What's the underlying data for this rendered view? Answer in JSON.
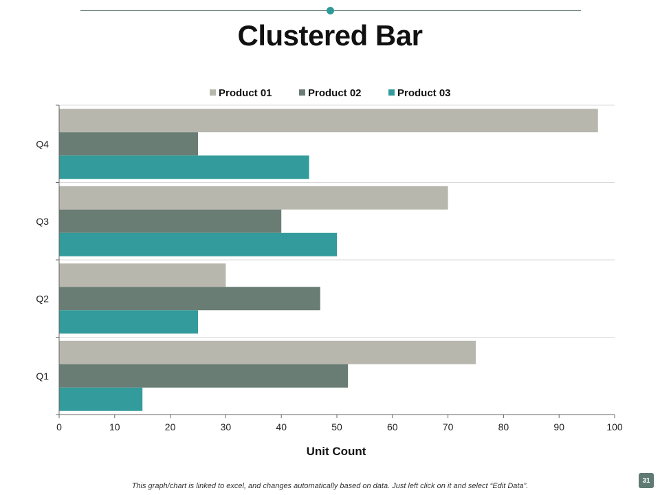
{
  "slide": {
    "title": "Clustered Bar",
    "footer": "This graph/chart is linked to excel, and changes automatically based on data. Just left click on it and select “Edit Data”.",
    "page_number": "31"
  },
  "colors": {
    "accent": "#2e9a9a",
    "rule": "#5f7a72",
    "product_01": "#b8b7ae",
    "product_02": "#6a7d75",
    "product_03": "#339b9b"
  },
  "chart_data": {
    "type": "bar",
    "orientation": "horizontal",
    "title": "",
    "xlabel": "Unit Count",
    "ylabel": "",
    "xlim": [
      0,
      100
    ],
    "xticks": [
      0,
      10,
      20,
      30,
      40,
      50,
      60,
      70,
      80,
      90,
      100
    ],
    "categories": [
      "Q1",
      "Q2",
      "Q3",
      "Q4"
    ],
    "legend_position": "top",
    "grid": "horizontal",
    "series": [
      {
        "name": "Product  01",
        "values": [
          75,
          30,
          70,
          97
        ]
      },
      {
        "name": "Product  02",
        "values": [
          52,
          47,
          40,
          25
        ]
      },
      {
        "name": "Product  03",
        "values": [
          15,
          25,
          50,
          45
        ]
      }
    ]
  }
}
